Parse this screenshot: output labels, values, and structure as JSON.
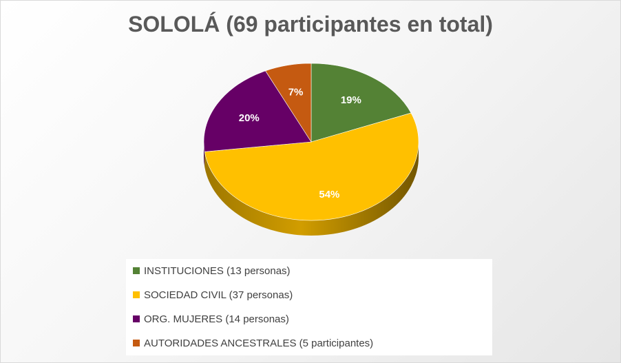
{
  "chart_data": {
    "type": "pie",
    "title": "SOLOLÁ (69 participantes en total)",
    "legend_position": "bottom",
    "slices": [
      {
        "label": "INSTITUCIONES (13 personas)",
        "value": 19,
        "display": "19%",
        "color": "#548235"
      },
      {
        "label": "SOCIEDAD CIVIL (37 personas)",
        "value": 54,
        "display": "54%",
        "color": "#FFC000"
      },
      {
        "label": "ORG. MUJERES (14 personas)",
        "value": 20,
        "display": "20%",
        "color": "#660066"
      },
      {
        "label": "AUTORIDADES ANCESTRALES (5 participantes)",
        "value": 7,
        "display": "7%",
        "color": "#C55A11"
      }
    ]
  }
}
